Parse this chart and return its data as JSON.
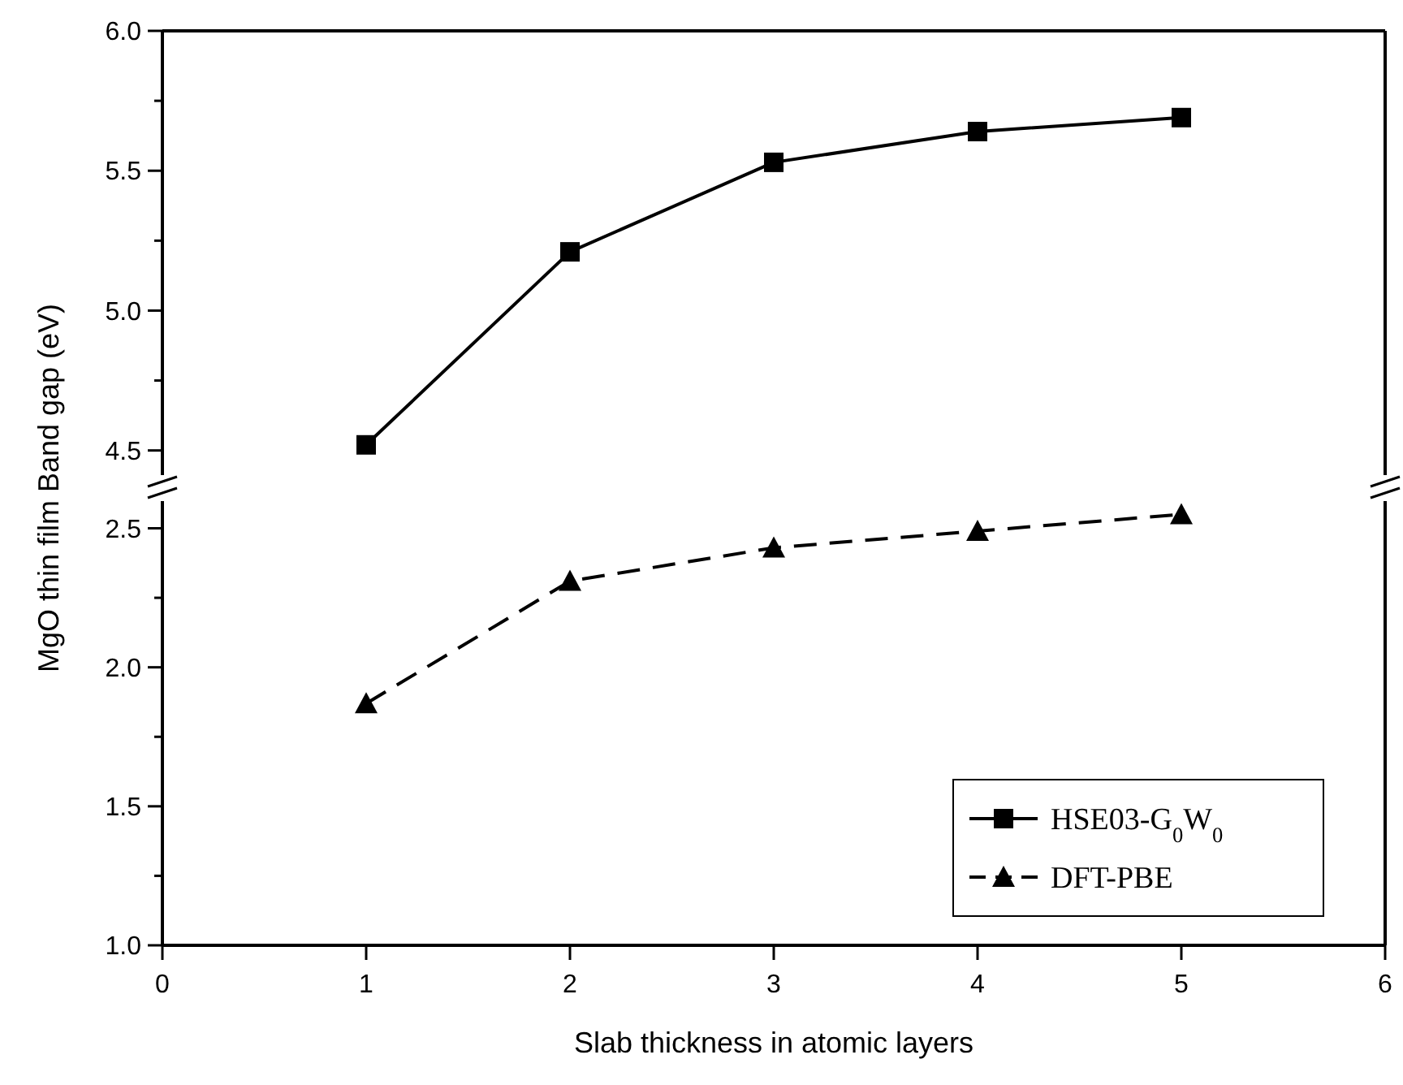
{
  "chart_data": [
    {
      "type": "line",
      "x": [
        1,
        2,
        3,
        4,
        5
      ],
      "xlim": [
        0,
        6
      ],
      "xticks": [
        0,
        1,
        2,
        3,
        4,
        5,
        6
      ],
      "ylim": [
        4.38,
        6.0
      ],
      "yticks": [
        {
          "value": 4.5,
          "label": "4.5"
        },
        {
          "value": 4.75,
          "label": null
        },
        {
          "value": 5.0,
          "label": "5.0"
        },
        {
          "value": 5.25,
          "label": null
        },
        {
          "value": 5.5,
          "label": "5.5"
        },
        {
          "value": 5.75,
          "label": null
        },
        {
          "value": 6.0,
          "label": "6.0"
        }
      ],
      "tick_labels": "y",
      "series": [
        {
          "name": "HSE03-G$_{0}$W$_{0}$",
          "color": "#000000",
          "values": [
            4.52,
            5.21,
            5.53,
            5.64,
            5.69
          ],
          "marker": "square",
          "line_style": "solid"
        }
      ]
    },
    {
      "type": "line",
      "x": [
        1,
        2,
        3,
        4,
        5
      ],
      "xlim": [
        0,
        6
      ],
      "xticks": [
        0,
        1,
        2,
        3,
        4,
        5,
        6
      ],
      "ylim": [
        1.0,
        2.63
      ],
      "yticks": [
        {
          "value": 1.0,
          "label": "1.0"
        },
        {
          "value": 1.25,
          "label": null
        },
        {
          "value": 1.5,
          "label": "1.5"
        },
        {
          "value": 1.75,
          "label": null
        },
        {
          "value": 2.0,
          "label": "2.0"
        },
        {
          "value": 2.25,
          "label": null
        },
        {
          "value": 2.5,
          "label": "2.5"
        }
      ],
      "xlabel": "Slab thickness in atomic layers",
      "ylabel": "MgO thin film Band gap (eV)",
      "legend": "bottom right",
      "series": [
        {
          "name": "DFT-PBE",
          "color": "#000000",
          "values": [
            1.87,
            2.31,
            2.43,
            2.49,
            2.55
          ],
          "marker": "triangle",
          "line_style": "dashed"
        }
      ]
    }
  ]
}
